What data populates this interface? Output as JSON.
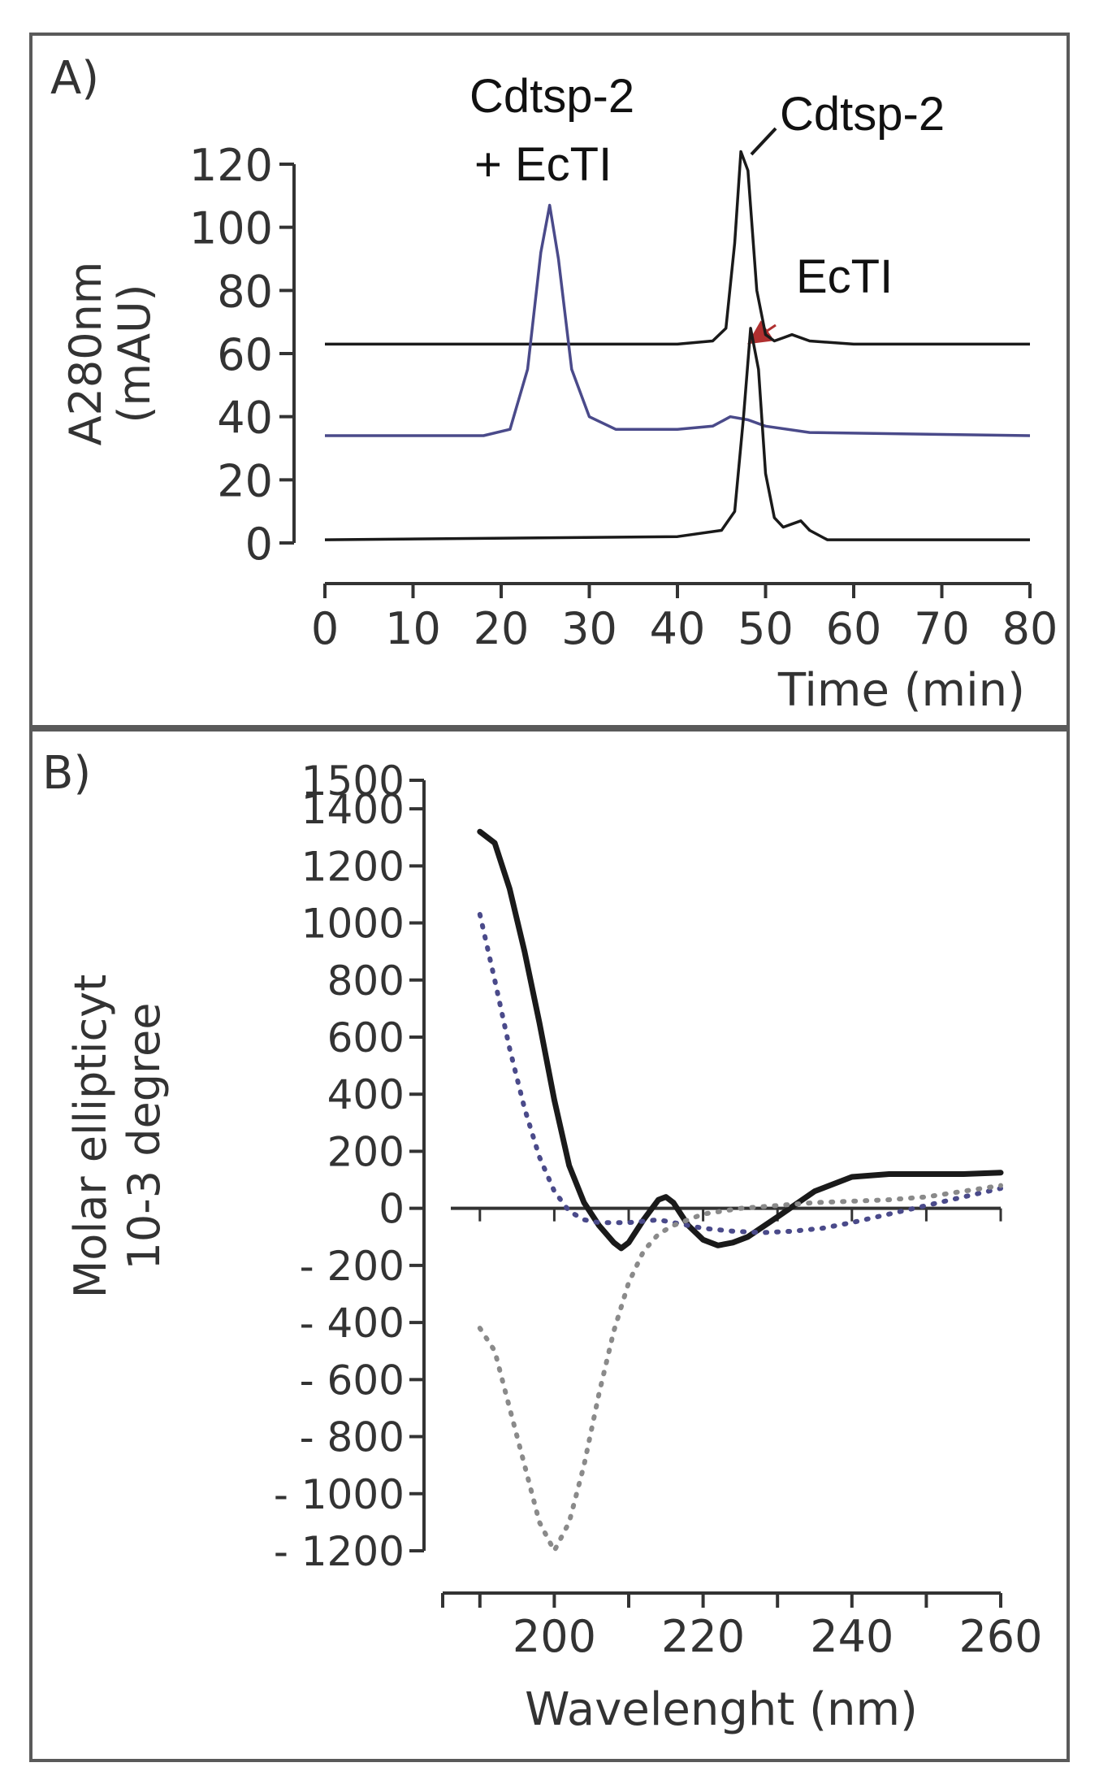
{
  "panel_a": {
    "label": "A)",
    "annotation_combo_line1": "Cdtsp-2",
    "annotation_combo_line2": "+ EcTI",
    "annotation_cdtsp": "Cdtsp-2",
    "annotation_ecti": "EcTI"
  },
  "panel_b": {
    "label": "B)"
  },
  "colors": {
    "axis": "#333333",
    "black_trace": "#1a1a1a",
    "blue_trace": "#4a4a8a",
    "gray_dotted": "#8a8a8a",
    "arrow_red": "#b03030"
  },
  "chart_data": [
    {
      "type": "line",
      "title": "",
      "xlabel": "Time (min)",
      "ylabel_line1": "A280nm",
      "ylabel_line2": "(mAU)",
      "xlim": [
        0,
        80
      ],
      "ylim": [
        0,
        120
      ],
      "xticks": [
        0,
        10,
        20,
        30,
        40,
        50,
        60,
        70,
        80
      ],
      "yticks": [
        0,
        20,
        40,
        60,
        80,
        100,
        120
      ],
      "xtick_labels": [
        "0",
        "10",
        "20",
        "30",
        "40",
        "50",
        "60",
        "70",
        "80"
      ],
      "ytick_labels": [
        "0",
        "20",
        "40",
        "60",
        "80",
        "100",
        "120"
      ],
      "series": [
        {
          "name": "Cdtsp-2",
          "color": "#1a1a1a",
          "x": [
            0,
            40,
            44,
            45.5,
            46.5,
            47.2,
            48,
            49,
            50,
            51,
            52,
            53,
            55,
            60,
            80
          ],
          "y": [
            63,
            63,
            64,
            68,
            95,
            124,
            118,
            80,
            66,
            64,
            65,
            66,
            64,
            63,
            63
          ]
        },
        {
          "name": "Cdtsp-2 + EcTI",
          "color": "#4a4a8a",
          "x": [
            0,
            18,
            21,
            23,
            24.5,
            25.5,
            26.5,
            28,
            30,
            33,
            40,
            44,
            46,
            48,
            50,
            55,
            80
          ],
          "y": [
            34,
            34,
            36,
            55,
            92,
            107,
            90,
            55,
            40,
            36,
            36,
            37,
            40,
            39,
            37,
            35,
            34
          ]
        },
        {
          "name": "EcTI",
          "color": "#1a1a1a",
          "x": [
            0,
            40,
            45,
            46.5,
            47.5,
            48.3,
            49.2,
            50,
            51,
            52,
            53,
            54,
            55,
            57,
            80
          ],
          "y": [
            1,
            2,
            4,
            10,
            40,
            68,
            55,
            22,
            8,
            5,
            6,
            7,
            4,
            1,
            1
          ]
        }
      ]
    },
    {
      "type": "line",
      "title": "",
      "xlabel": "Wavelenght (nm)",
      "ylabel_line1": "Molar ellipticyt",
      "ylabel_line2": "10-3 degree",
      "xlim": [
        185,
        260
      ],
      "ylim": [
        -1200,
        1500
      ],
      "xticks": [
        200,
        220,
        240,
        260
      ],
      "yticks": [
        -1200,
        -1000,
        -800,
        -600,
        -400,
        -200,
        0,
        200,
        400,
        600,
        800,
        1000,
        1200,
        1400,
        1500
      ],
      "xtick_labels": [
        "200",
        "220",
        "240",
        "260"
      ],
      "ytick_labels": [
        "- 1200",
        "- 1000",
        "- 800",
        "- 600",
        "- 400",
        "- 200",
        "0",
        "200",
        "400",
        "600",
        "800",
        "1000",
        "1200",
        "1400",
        "1500"
      ],
      "series": [
        {
          "name": "solid black",
          "style": "solid",
          "color": "#1a1a1a",
          "x": [
            190,
            192,
            194,
            196,
            198,
            200,
            202,
            204,
            206,
            208,
            209,
            210,
            212,
            214,
            215,
            216,
            218,
            220,
            222,
            224,
            226,
            230,
            235,
            240,
            245,
            250,
            255,
            260
          ],
          "y": [
            1320,
            1280,
            1120,
            900,
            650,
            380,
            150,
            20,
            -60,
            -120,
            -140,
            -120,
            -40,
            30,
            40,
            20,
            -60,
            -110,
            -130,
            -120,
            -100,
            -30,
            60,
            110,
            120,
            120,
            120,
            125
          ]
        },
        {
          "name": "blue dotted",
          "style": "dotted",
          "color": "#4a4a8a",
          "x": [
            190,
            192,
            194,
            196,
            198,
            200,
            202,
            204,
            206,
            208,
            210,
            212,
            214,
            216,
            218,
            220,
            224,
            228,
            232,
            236,
            240,
            245,
            250,
            255,
            260
          ],
          "y": [
            1030,
            800,
            560,
            350,
            180,
            60,
            -10,
            -40,
            -50,
            -50,
            -50,
            -45,
            -40,
            -50,
            -60,
            -70,
            -80,
            -85,
            -80,
            -70,
            -50,
            -20,
            10,
            40,
            70
          ]
        },
        {
          "name": "gray dotted",
          "style": "dotted",
          "color": "#8a8a8a",
          "x": [
            190,
            192,
            194,
            196,
            198,
            200,
            202,
            204,
            206,
            208,
            210,
            212,
            214,
            216,
            218,
            220,
            225,
            230,
            235,
            240,
            245,
            250,
            255,
            260
          ],
          "y": [
            -420,
            -500,
            -700,
            -900,
            -1100,
            -1200,
            -1100,
            -900,
            -650,
            -430,
            -260,
            -150,
            -90,
            -60,
            -40,
            -20,
            0,
            10,
            20,
            25,
            30,
            40,
            60,
            80
          ]
        }
      ]
    }
  ]
}
